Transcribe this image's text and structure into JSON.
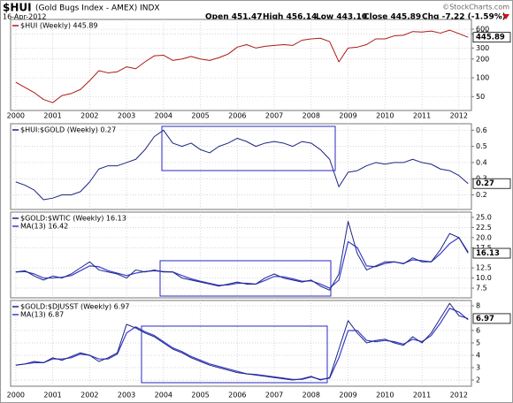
{
  "header": {
    "symbol": "$HUI",
    "description": "(Gold Bugs Index - AMEX) INDX",
    "date": "16-Apr-2012",
    "open": "Open 451.47",
    "high": "High 456.14",
    "low": "Low 443.10",
    "close": "Close 445.89",
    "change": "Chg -7.22 (-1.59%)",
    "credit": "©StockCharts.com"
  },
  "chart_data": [
    {
      "type": "line",
      "log_scale": true,
      "grid": true,
      "last_label": "445.89",
      "x": [
        2000,
        2000.25,
        2000.5,
        2000.75,
        2001,
        2001.25,
        2001.5,
        2001.75,
        2002,
        2002.25,
        2002.5,
        2002.75,
        2003,
        2003.25,
        2003.5,
        2003.75,
        2004,
        2004.25,
        2004.5,
        2004.75,
        2005,
        2005.25,
        2005.5,
        2005.75,
        2006,
        2006.25,
        2006.5,
        2006.75,
        2007,
        2007.25,
        2007.5,
        2007.75,
        2008,
        2008.25,
        2008.5,
        2008.75,
        2009,
        2009.25,
        2009.5,
        2009.75,
        2010,
        2010.25,
        2010.5,
        2010.75,
        2011,
        2011.25,
        2011.5,
        2011.75,
        2012,
        2012.25
      ],
      "xlim": [
        1999.86,
        2012.34
      ],
      "xticks": [
        2000,
        2001,
        2002,
        2003,
        2004,
        2005,
        2006,
        2007,
        2008,
        2009,
        2010,
        2011,
        2012
      ],
      "ylim": [
        30,
        860
      ],
      "yticks": [
        50,
        100,
        200,
        300,
        500,
        600
      ],
      "series": [
        {
          "name": "$HUI (Weekly) 445.89",
          "color": "#b01818",
          "values": [
            85,
            70,
            58,
            45,
            40,
            52,
            56,
            65,
            90,
            130,
            120,
            125,
            150,
            140,
            180,
            225,
            230,
            190,
            200,
            220,
            200,
            190,
            210,
            240,
            310,
            340,
            300,
            320,
            330,
            340,
            330,
            400,
            420,
            430,
            380,
            180,
            300,
            310,
            340,
            420,
            420,
            470,
            480,
            550,
            540,
            560,
            520,
            580,
            510,
            445.89
          ]
        }
      ]
    },
    {
      "type": "line",
      "grid": true,
      "last_label": "0.27",
      "x": [
        2000,
        2000.25,
        2000.5,
        2000.75,
        2001,
        2001.25,
        2001.5,
        2001.75,
        2002,
        2002.25,
        2002.5,
        2002.75,
        2003,
        2003.25,
        2003.5,
        2003.75,
        2004,
        2004.25,
        2004.5,
        2004.75,
        2005,
        2005.25,
        2005.5,
        2005.75,
        2006,
        2006.25,
        2006.5,
        2006.75,
        2007,
        2007.25,
        2007.5,
        2007.75,
        2008,
        2008.25,
        2008.5,
        2008.75,
        2009,
        2009.25,
        2009.5,
        2009.75,
        2010,
        2010.25,
        2010.5,
        2010.75,
        2011,
        2011.25,
        2011.5,
        2011.75,
        2012,
        2012.25
      ],
      "xlim": [
        1999.86,
        2012.34
      ],
      "xticks": [
        2000,
        2001,
        2002,
        2003,
        2004,
        2005,
        2006,
        2007,
        2008,
        2009,
        2010,
        2011,
        2012
      ],
      "ylim": [
        0.11,
        0.64
      ],
      "yticks": [
        0.2,
        0.3,
        0.4,
        0.5,
        0.6
      ],
      "series": [
        {
          "name": "$HUI:$GOLD (Weekly) 0.27",
          "color": "#1c2680",
          "values": [
            0.28,
            0.26,
            0.23,
            0.17,
            0.18,
            0.2,
            0.2,
            0.22,
            0.28,
            0.36,
            0.38,
            0.38,
            0.4,
            0.42,
            0.48,
            0.56,
            0.6,
            0.52,
            0.5,
            0.52,
            0.48,
            0.46,
            0.5,
            0.52,
            0.55,
            0.53,
            0.5,
            0.52,
            0.53,
            0.52,
            0.5,
            0.53,
            0.52,
            0.48,
            0.42,
            0.25,
            0.34,
            0.35,
            0.38,
            0.4,
            0.39,
            0.4,
            0.4,
            0.42,
            0.4,
            0.39,
            0.36,
            0.35,
            0.32,
            0.27
          ]
        }
      ]
    },
    {
      "type": "line",
      "grid": true,
      "last_label": "16.13",
      "x": [
        2000,
        2000.25,
        2000.5,
        2000.75,
        2001,
        2001.25,
        2001.5,
        2001.75,
        2002,
        2002.25,
        2002.5,
        2002.75,
        2003,
        2003.25,
        2003.5,
        2003.75,
        2004,
        2004.25,
        2004.5,
        2004.75,
        2005,
        2005.25,
        2005.5,
        2005.75,
        2006,
        2006.25,
        2006.5,
        2006.75,
        2007,
        2007.25,
        2007.5,
        2007.75,
        2008,
        2008.25,
        2008.5,
        2008.75,
        2009,
        2009.25,
        2009.5,
        2009.75,
        2010,
        2010.25,
        2010.5,
        2010.75,
        2011,
        2011.25,
        2011.5,
        2011.75,
        2012,
        2012.25
      ],
      "xlim": [
        1999.86,
        2012.34
      ],
      "xticks": [
        2000,
        2001,
        2002,
        2003,
        2004,
        2005,
        2006,
        2007,
        2008,
        2009,
        2010,
        2011,
        2012
      ],
      "ylim": [
        5.1,
        26.3
      ],
      "yticks": [
        7.5,
        {
          "value": 10,
          "label": "10.0"
        },
        12.5,
        17.5,
        {
          "value": 20,
          "label": "20.0"
        },
        22.5,
        {
          "value": 25,
          "label": "25.0"
        }
      ],
      "series": [
        {
          "name": "$GOLD:$WTIC (Weekly) 16.13",
          "color": "#1c2680",
          "values": [
            11.5,
            11.8,
            10.5,
            9.5,
            10.5,
            10,
            11,
            12.5,
            14,
            12,
            11.5,
            11,
            10,
            12,
            11.5,
            12,
            11.5,
            11.5,
            10,
            9.5,
            9,
            8.5,
            8,
            8.5,
            9,
            8.5,
            8.5,
            10,
            11,
            10,
            9.5,
            9,
            9.5,
            8,
            7,
            11,
            24,
            16,
            12,
            13,
            14,
            14,
            13.5,
            15,
            14,
            14,
            17,
            21,
            20,
            16.13
          ]
        },
        {
          "name": "MA(13) 16.42",
          "color": "#3a3ad0",
          "values": [
            11.5,
            11.6,
            11,
            10,
            10,
            10.2,
            10.6,
            11.8,
            13,
            12.8,
            11.8,
            11.2,
            10.6,
            11.2,
            11.6,
            11.8,
            11.6,
            11.5,
            10.6,
            9.8,
            9.2,
            8.7,
            8.2,
            8.3,
            8.7,
            8.7,
            8.5,
            9.4,
            10.4,
            10.3,
            9.8,
            9.2,
            9.3,
            8.5,
            7.5,
            9.5,
            19,
            17.5,
            13,
            12.8,
            13.6,
            14,
            13.6,
            14.5,
            14.3,
            14,
            16,
            18.5,
            20,
            16.42
          ]
        }
      ]
    },
    {
      "type": "line",
      "grid": true,
      "last_label": "6.97",
      "x": [
        2000,
        2000.25,
        2000.5,
        2000.75,
        2001,
        2001.25,
        2001.5,
        2001.75,
        2002,
        2002.25,
        2002.5,
        2002.75,
        2003,
        2003.25,
        2003.5,
        2003.75,
        2004,
        2004.25,
        2004.5,
        2004.75,
        2005,
        2005.25,
        2005.5,
        2005.75,
        2006,
        2006.25,
        2006.5,
        2006.75,
        2007,
        2007.25,
        2007.5,
        2007.75,
        2008,
        2008.25,
        2008.5,
        2008.75,
        2009,
        2009.25,
        2009.5,
        2009.75,
        2010,
        2010.25,
        2010.5,
        2010.75,
        2011,
        2011.25,
        2011.5,
        2011.75,
        2012,
        2012.25
      ],
      "xlim": [
        1999.86,
        2012.34
      ],
      "xticks": [
        2000,
        2001,
        2002,
        2003,
        2004,
        2005,
        2006,
        2007,
        2008,
        2009,
        2010,
        2011,
        2012
      ],
      "ylim": [
        1.5,
        8.43
      ],
      "yticks": [
        2,
        3,
        4,
        5,
        6,
        8
      ],
      "series": [
        {
          "name": "$GOLD:$DJUSST (Weekly) 6.97",
          "color": "#1c2680",
          "values": [
            3.2,
            3.3,
            3.5,
            3.4,
            3.8,
            3.6,
            3.9,
            4.2,
            4,
            3.5,
            3.8,
            4.2,
            6.5,
            6.2,
            5.8,
            5.5,
            5,
            4.5,
            4.2,
            3.8,
            3.5,
            3.2,
            3,
            2.8,
            2.6,
            2.5,
            2.4,
            2.3,
            2.2,
            2.1,
            2,
            2.1,
            2.3,
            2,
            2.2,
            4.5,
            6.8,
            5.8,
            5,
            5.2,
            5.3,
            5,
            4.8,
            5.5,
            5,
            5.8,
            7,
            8.2,
            7.2,
            6.97
          ]
        },
        {
          "name": "MA(13) 6.87",
          "color": "#3a3ad0",
          "values": [
            3.2,
            3.3,
            3.4,
            3.4,
            3.7,
            3.7,
            3.8,
            4.1,
            4,
            3.7,
            3.7,
            4.1,
            5.8,
            6.3,
            5.9,
            5.6,
            5.1,
            4.6,
            4.3,
            3.9,
            3.6,
            3.3,
            3.1,
            2.9,
            2.7,
            2.5,
            2.45,
            2.35,
            2.25,
            2.15,
            2.05,
            2.05,
            2.25,
            2.05,
            2.15,
            3.8,
            6,
            6,
            5.2,
            5.1,
            5.2,
            5.1,
            4.9,
            5.3,
            5.1,
            5.6,
            6.6,
            7.8,
            7.5,
            6.87
          ]
        }
      ]
    }
  ]
}
